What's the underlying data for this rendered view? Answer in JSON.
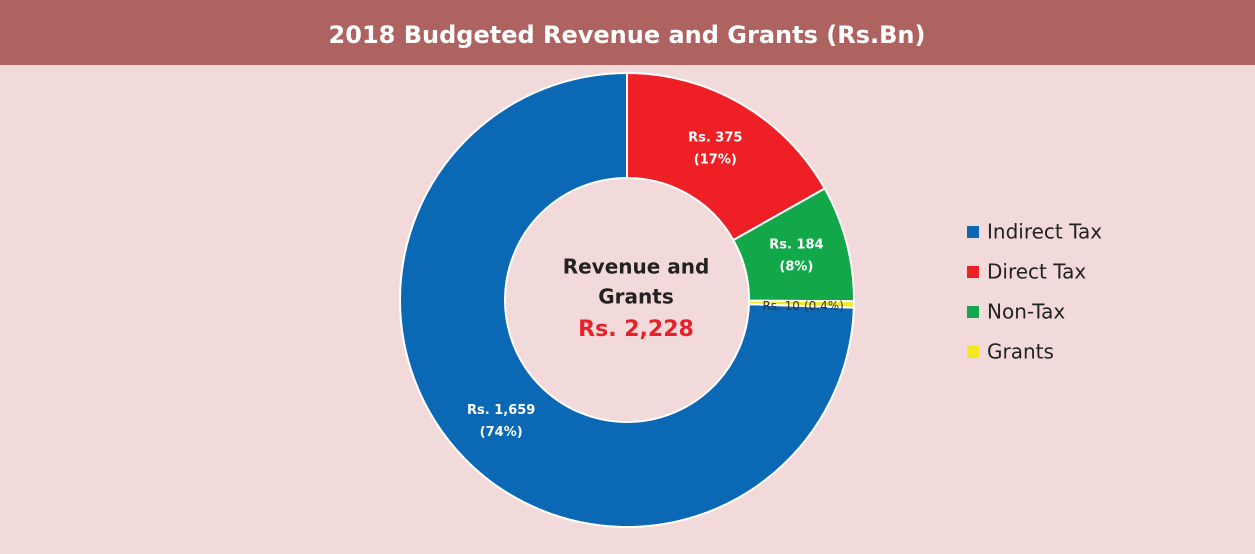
{
  "chart_data": {
    "type": "pie",
    "donut": true,
    "title": "2018 Budgeted Revenue and Grants (Rs.Bn)",
    "categories": [
      "Indirect Tax",
      "Direct Tax",
      "Non-Tax",
      "Grants"
    ],
    "values": [
      1659,
      375,
      184,
      10
    ],
    "value_labels": [
      "Rs. 1,659",
      "Rs. 375",
      "Rs. 184",
      "Rs. 10"
    ],
    "percent_labels": [
      "(74%)",
      "(17%)",
      "(8%)",
      "(0.4%)"
    ],
    "colors": [
      "#0a68b4",
      "#ee1f25",
      "#12a84a",
      "#f2ea1c"
    ],
    "center_label": [
      "Revenue and",
      "Grants"
    ],
    "center_value": "Rs. 2,228",
    "legend": "right"
  }
}
